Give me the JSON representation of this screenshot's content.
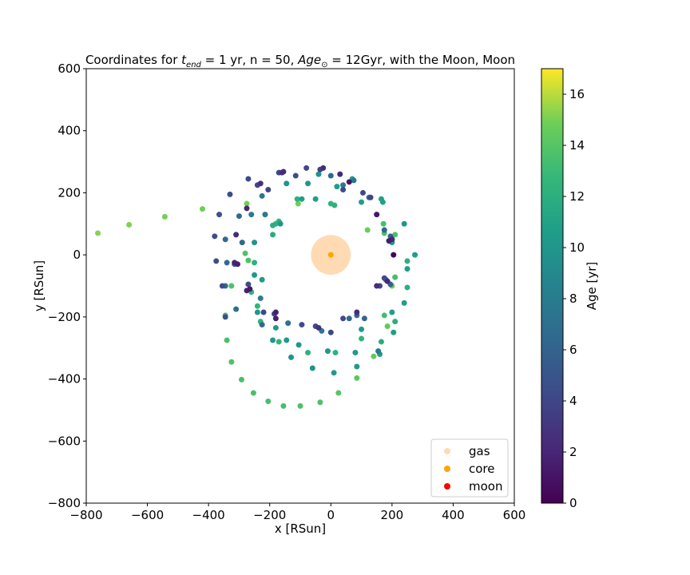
{
  "chart_data": {
    "type": "scatter",
    "title_parts": {
      "a": "Coordinates for ",
      "t": "t",
      "t_sub": "end",
      "b": " = 1 yr, n = 50, ",
      "age": "Age",
      "sun_sub": "⊙",
      "c": " = 12Gyr, with the Moon, Moon"
    },
    "xlabel": "x [RSun]",
    "ylabel": "y [RSun]",
    "xlim": [
      -800,
      600
    ],
    "ylim": [
      -800,
      600
    ],
    "xticks": [
      -800,
      -600,
      -400,
      -200,
      0,
      200,
      400,
      600
    ],
    "yticks": [
      -800,
      -600,
      -400,
      -200,
      0,
      200,
      400,
      600
    ],
    "xtick_labels": [
      "−800",
      "−600",
      "−400",
      "−200",
      "0",
      "200",
      "400",
      "600"
    ],
    "ytick_labels": [
      "−800",
      "−600",
      "−400",
      "−200",
      "0",
      "200",
      "400",
      "600"
    ],
    "grid": false,
    "legend_placement": "lower-right",
    "colorbar": {
      "label": "Age [yr]",
      "range": [
        0,
        17
      ],
      "ticks": [
        0,
        2,
        4,
        6,
        8,
        10,
        12,
        14,
        16
      ],
      "tick_labels": [
        "0",
        "2",
        "4",
        "6",
        "8",
        "10",
        "12",
        "14",
        "16"
      ],
      "colormap": "viridis"
    },
    "legend": [
      {
        "label": "gas",
        "color": "#ffdab3"
      },
      {
        "label": "core",
        "color": "#ffa500"
      },
      {
        "label": "moon",
        "color": "#ff0000"
      }
    ],
    "gas": {
      "x": 0,
      "y": 0,
      "radius": 65,
      "color": "#ffdab3"
    },
    "core": {
      "x": 0,
      "y": 0,
      "color": "#ffa500"
    },
    "particles": [
      {
        "x": -762,
        "y": 70,
        "age": 15.2
      },
      {
        "x": -660,
        "y": 97,
        "age": 15.1
      },
      {
        "x": -543,
        "y": 123,
        "age": 15.0
      },
      {
        "x": -420,
        "y": 148,
        "age": 14.9
      },
      {
        "x": -107,
        "y": 165,
        "age": 14.8
      },
      {
        "x": 120,
        "y": 80,
        "age": 14.7
      },
      {
        "x": -275,
        "y": 165,
        "age": 14.9
      },
      {
        "x": -280,
        "y": 5,
        "age": 13.8
      },
      {
        "x": -270,
        "y": -18,
        "age": 13.6
      },
      {
        "x": -325,
        "y": -100,
        "age": 13.7
      },
      {
        "x": -345,
        "y": -195,
        "age": 13.6
      },
      {
        "x": -340,
        "y": -275,
        "age": 13.5
      },
      {
        "x": -325,
        "y": -345,
        "age": 13.6
      },
      {
        "x": -292,
        "y": -402,
        "age": 13.5
      },
      {
        "x": -253,
        "y": -445,
        "age": 13.5
      },
      {
        "x": -205,
        "y": -472,
        "age": 13.5
      },
      {
        "x": -155,
        "y": -487,
        "age": 13.4
      },
      {
        "x": -100,
        "y": -487,
        "age": 13.6
      },
      {
        "x": -35,
        "y": -475,
        "age": 13.7
      },
      {
        "x": 25,
        "y": -445,
        "age": 14.0
      },
      {
        "x": 85,
        "y": -397,
        "age": 14.2
      },
      {
        "x": 140,
        "y": -327,
        "age": 14.5
      },
      {
        "x": 185,
        "y": -230,
        "age": 14.4
      },
      {
        "x": 200,
        "y": -100,
        "age": 14.6
      },
      {
        "x": 210,
        "y": -72,
        "age": 13.4
      },
      {
        "x": 175,
        "y": 70,
        "age": 13.5
      },
      {
        "x": 210,
        "y": 65,
        "age": 13.6
      },
      {
        "x": 172,
        "y": 100,
        "age": 13.3
      },
      {
        "x": 175,
        "y": -195,
        "age": 13.3
      },
      {
        "x": -110,
        "y": 180,
        "age": 12.2
      },
      {
        "x": -180,
        "y": 100,
        "age": 12.3
      },
      {
        "x": -170,
        "y": 108,
        "age": 12.4
      },
      {
        "x": 0,
        "y": 165,
        "age": 12.4
      },
      {
        "x": 12,
        "y": 160,
        "age": 12.2
      },
      {
        "x": -260,
        "y": -120,
        "age": 12.4
      },
      {
        "x": -240,
        "y": -165,
        "age": 12.5
      },
      {
        "x": -230,
        "y": -215,
        "age": 12.5
      },
      {
        "x": -170,
        "y": -280,
        "age": 12.3
      },
      {
        "x": -75,
        "y": -315,
        "age": 12.3
      },
      {
        "x": 15,
        "y": -315,
        "age": 12.3
      },
      {
        "x": 100,
        "y": -270,
        "age": 12.4
      },
      {
        "x": 165,
        "y": -280,
        "age": 11.8
      },
      {
        "x": 210,
        "y": -215,
        "age": 11.9
      },
      {
        "x": 250,
        "y": -105,
        "age": 12.0
      },
      {
        "x": 250,
        "y": -20,
        "age": 12.0
      },
      {
        "x": -250,
        "y": -25,
        "age": 12.2
      },
      {
        "x": -190,
        "y": 95,
        "age": 11.8
      },
      {
        "x": -190,
        "y": 65,
        "age": 11.8
      },
      {
        "x": -95,
        "y": 180,
        "age": 10.6
      },
      {
        "x": -50,
        "y": 180,
        "age": 10.6
      },
      {
        "x": 20,
        "y": 220,
        "age": 10.6
      },
      {
        "x": 70,
        "y": 245,
        "age": 10.6
      },
      {
        "x": 100,
        "y": 170,
        "age": 10.7
      },
      {
        "x": 165,
        "y": 180,
        "age": 10.8
      },
      {
        "x": 170,
        "y": 170,
        "age": 10.9
      },
      {
        "x": 200,
        "y": 40,
        "age": 10.5
      },
      {
        "x": 275,
        "y": 0,
        "age": 10.6
      },
      {
        "x": 250,
        "y": -45,
        "age": 10.7
      },
      {
        "x": 240,
        "y": -155,
        "age": 10.6
      },
      {
        "x": 200,
        "y": -185,
        "age": 10.7
      },
      {
        "x": 205,
        "y": -250,
        "age": 10.6
      },
      {
        "x": 160,
        "y": -320,
        "age": 10.6
      },
      {
        "x": 100,
        "y": -240,
        "age": 10.5
      },
      {
        "x": 80,
        "y": -315,
        "age": 10.5
      },
      {
        "x": 85,
        "y": -360,
        "age": 10.4
      },
      {
        "x": 10,
        "y": -380,
        "age": 10.4
      },
      {
        "x": -10,
        "y": -310,
        "age": 10.3
      },
      {
        "x": -105,
        "y": -290,
        "age": 10.2
      },
      {
        "x": -145,
        "y": -275,
        "age": 10.3
      },
      {
        "x": -190,
        "y": -275,
        "age": 10.2
      },
      {
        "x": -180,
        "y": -235,
        "age": 10.3
      },
      {
        "x": -240,
        "y": -185,
        "age": 10.2
      },
      {
        "x": -225,
        "y": -80,
        "age": 10.3
      },
      {
        "x": -250,
        "y": -65,
        "age": 10.2
      },
      {
        "x": -250,
        "y": 40,
        "age": 10.1
      },
      {
        "x": -165,
        "y": 100,
        "age": 10.0
      },
      {
        "x": -75,
        "y": 230,
        "age": 10.2
      },
      {
        "x": -145,
        "y": 230,
        "age": 9.9
      },
      {
        "x": -40,
        "y": 260,
        "age": 9.8
      },
      {
        "x": 240,
        "y": 100,
        "age": 10.0
      },
      {
        "x": 200,
        "y": 50,
        "age": 9.9
      },
      {
        "x": -60,
        "y": -365,
        "age": 9.8
      },
      {
        "x": -130,
        "y": -330,
        "age": 9.8
      },
      {
        "x": -230,
        "y": -140,
        "age": 8.2
      },
      {
        "x": -260,
        "y": 130,
        "age": 8.0
      },
      {
        "x": -215,
        "y": 130,
        "age": 7.8
      },
      {
        "x": -225,
        "y": 190,
        "age": 7.6
      },
      {
        "x": 40,
        "y": 225,
        "age": 8.0
      },
      {
        "x": 75,
        "y": 240,
        "age": 7.8
      },
      {
        "x": 155,
        "y": -310,
        "age": 7.8
      },
      {
        "x": -30,
        "y": -245,
        "age": 7.7
      },
      {
        "x": -140,
        "y": -220,
        "age": 7.2
      },
      {
        "x": -310,
        "y": -175,
        "age": 7.0
      },
      {
        "x": -345,
        "y": -100,
        "age": 6.8
      },
      {
        "x": -340,
        "y": -25,
        "age": 6.6
      },
      {
        "x": -345,
        "y": 50,
        "age": 6.6
      },
      {
        "x": -300,
        "y": 125,
        "age": 6.5
      },
      {
        "x": -290,
        "y": 40,
        "age": 6.4
      },
      {
        "x": -225,
        "y": -225,
        "age": 6.7
      },
      {
        "x": 195,
        "y": -95,
        "age": 6.0
      },
      {
        "x": 180,
        "y": -80,
        "age": 6.2
      },
      {
        "x": 60,
        "y": -205,
        "age": 6.5
      },
      {
        "x": 85,
        "y": -195,
        "age": 6.6
      },
      {
        "x": 110,
        "y": -205,
        "age": 6.3
      },
      {
        "x": 125,
        "y": 185,
        "age": 6.5
      },
      {
        "x": 175,
        "y": 80,
        "age": 6.2
      },
      {
        "x": 195,
        "y": 60,
        "age": 5.8
      },
      {
        "x": -315,
        "y": -30,
        "age": 5.8
      },
      {
        "x": 0,
        "y": 255,
        "age": 6.2
      },
      {
        "x": -365,
        "y": 130,
        "age": 4.8
      },
      {
        "x": -380,
        "y": 60,
        "age": 4.6
      },
      {
        "x": -375,
        "y": -20,
        "age": 4.4
      },
      {
        "x": -355,
        "y": -100,
        "age": 4.6
      },
      {
        "x": -330,
        "y": 195,
        "age": 4.5
      },
      {
        "x": -270,
        "y": 245,
        "age": 4.4
      },
      {
        "x": -240,
        "y": 225,
        "age": 4.2
      },
      {
        "x": -205,
        "y": 210,
        "age": 4.0
      },
      {
        "x": -170,
        "y": 265,
        "age": 4.2
      },
      {
        "x": -115,
        "y": 255,
        "age": 4.3
      },
      {
        "x": -80,
        "y": 280,
        "age": 4.2
      },
      {
        "x": -35,
        "y": 275,
        "age": 4.0
      },
      {
        "x": 40,
        "y": 210,
        "age": 4.4
      },
      {
        "x": 105,
        "y": 200,
        "age": 4.2
      },
      {
        "x": 130,
        "y": 185,
        "age": 4.0
      },
      {
        "x": 175,
        "y": -75,
        "age": 4.4
      },
      {
        "x": 160,
        "y": -100,
        "age": 4.2
      },
      {
        "x": 40,
        "y": -205,
        "age": 4.3
      },
      {
        "x": -50,
        "y": -230,
        "age": 4.3
      },
      {
        "x": -95,
        "y": -225,
        "age": 4.4
      },
      {
        "x": -220,
        "y": -185,
        "age": 4.2
      },
      {
        "x": -270,
        "y": -95,
        "age": 4.3
      },
      {
        "x": -345,
        "y": -200,
        "age": 4.6
      },
      {
        "x": -185,
        "y": -190,
        "age": 4.0
      },
      {
        "x": 0,
        "y": -250,
        "age": 4.2
      },
      {
        "x": -25,
        "y": 280,
        "age": 2.4
      },
      {
        "x": -155,
        "y": 268,
        "age": 2.2
      },
      {
        "x": -230,
        "y": 230,
        "age": 2.5
      },
      {
        "x": 30,
        "y": 260,
        "age": 2.3
      },
      {
        "x": -310,
        "y": 65,
        "age": 2.2
      },
      {
        "x": -275,
        "y": 150,
        "age": 2.0
      },
      {
        "x": -315,
        "y": -25,
        "age": 1.8
      },
      {
        "x": -305,
        "y": -30,
        "age": 1.6
      },
      {
        "x": -275,
        "y": -115,
        "age": 1.8
      },
      {
        "x": -265,
        "y": -110,
        "age": 1.4
      },
      {
        "x": -180,
        "y": -185,
        "age": 1.6
      },
      {
        "x": -180,
        "y": -205,
        "age": 1.6
      },
      {
        "x": 85,
        "y": -185,
        "age": 2.3
      },
      {
        "x": 150,
        "y": -100,
        "age": 2.4
      },
      {
        "x": 185,
        "y": -85,
        "age": 2.2
      },
      {
        "x": 200,
        "y": 50,
        "age": 2.2
      },
      {
        "x": 190,
        "y": 45,
        "age": 1.6
      },
      {
        "x": 150,
        "y": 130,
        "age": 1.2
      },
      {
        "x": 60,
        "y": 235,
        "age": 1.2
      },
      {
        "x": 205,
        "y": 0,
        "age": 0.3
      },
      {
        "x": -40,
        "y": -235,
        "age": 2.6
      },
      {
        "x": -160,
        "y": 265,
        "age": 2.4
      }
    ]
  }
}
